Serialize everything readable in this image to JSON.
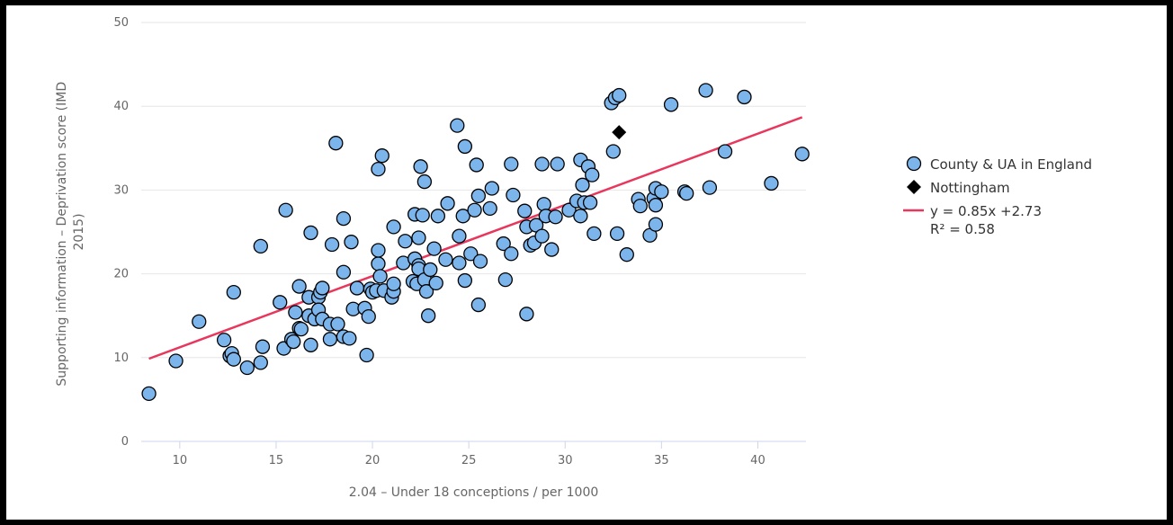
{
  "chart_data": {
    "type": "scatter",
    "title": "",
    "xlabel": "2.04 – Under 18 conceptions / per 1000",
    "ylabel_lines": [
      "Supporting information – Deprivation score (IMD",
      "2015)"
    ],
    "xlim": [
      8,
      42.5
    ],
    "ylim": [
      0,
      50
    ],
    "xticks": [
      10,
      15,
      20,
      25,
      30,
      35,
      40
    ],
    "yticks": [
      0,
      10,
      20,
      30,
      40,
      50
    ],
    "grid": "horizontal",
    "legend_position": "right",
    "colors": {
      "points": "#7cb5ec",
      "point_stroke": "#000000",
      "highlight": "#000000",
      "trendline": "#e8365d",
      "grid": "#e6e6e6",
      "axis": "#ccd6eb"
    },
    "series": [
      {
        "name": "County & UA in England",
        "marker": "circle",
        "points": [
          [
            8.4,
            5.7
          ],
          [
            9.8,
            9.6
          ],
          [
            11.0,
            14.3
          ],
          [
            12.3,
            12.1
          ],
          [
            12.6,
            10.2
          ],
          [
            12.7,
            10.5
          ],
          [
            12.8,
            9.8
          ],
          [
            12.8,
            17.8
          ],
          [
            13.5,
            8.8
          ],
          [
            14.2,
            9.4
          ],
          [
            14.2,
            23.3
          ],
          [
            14.3,
            11.3
          ],
          [
            15.2,
            16.6
          ],
          [
            15.4,
            11.1
          ],
          [
            15.5,
            27.6
          ],
          [
            15.8,
            12.2
          ],
          [
            15.9,
            11.9
          ],
          [
            16.0,
            15.4
          ],
          [
            16.2,
            13.5
          ],
          [
            16.2,
            18.5
          ],
          [
            16.3,
            13.4
          ],
          [
            16.7,
            17.2
          ],
          [
            16.7,
            15.0
          ],
          [
            16.8,
            11.5
          ],
          [
            16.8,
            24.9
          ],
          [
            17.0,
            14.6
          ],
          [
            17.2,
            17.2
          ],
          [
            17.2,
            15.7
          ],
          [
            17.3,
            17.8
          ],
          [
            17.4,
            14.6
          ],
          [
            17.4,
            18.3
          ],
          [
            17.8,
            12.2
          ],
          [
            17.8,
            14.0
          ],
          [
            17.9,
            23.5
          ],
          [
            18.1,
            35.6
          ],
          [
            18.2,
            14.0
          ],
          [
            18.5,
            20.2
          ],
          [
            18.5,
            26.6
          ],
          [
            18.5,
            12.5
          ],
          [
            18.8,
            12.3
          ],
          [
            18.9,
            23.8
          ],
          [
            19.0,
            15.8
          ],
          [
            19.2,
            18.3
          ],
          [
            19.6,
            15.9
          ],
          [
            19.7,
            10.3
          ],
          [
            19.8,
            14.9
          ],
          [
            19.9,
            18.2
          ],
          [
            20.0,
            17.8
          ],
          [
            20.2,
            18.0
          ],
          [
            20.3,
            32.5
          ],
          [
            20.3,
            21.2
          ],
          [
            20.3,
            22.8
          ],
          [
            20.4,
            19.7
          ],
          [
            20.5,
            34.1
          ],
          [
            20.6,
            18.0
          ],
          [
            21.0,
            17.2
          ],
          [
            21.1,
            25.6
          ],
          [
            21.1,
            17.9
          ],
          [
            21.1,
            18.8
          ],
          [
            21.6,
            21.3
          ],
          [
            21.7,
            23.9
          ],
          [
            22.1,
            19.1
          ],
          [
            22.2,
            27.1
          ],
          [
            22.2,
            21.8
          ],
          [
            22.3,
            18.8
          ],
          [
            22.4,
            21.0
          ],
          [
            22.4,
            20.6
          ],
          [
            22.4,
            24.3
          ],
          [
            22.5,
            32.8
          ],
          [
            22.6,
            27.0
          ],
          [
            22.7,
            31.0
          ],
          [
            22.7,
            19.3
          ],
          [
            22.8,
            17.9
          ],
          [
            22.9,
            15.0
          ],
          [
            23.0,
            20.5
          ],
          [
            23.2,
            23.0
          ],
          [
            23.3,
            18.9
          ],
          [
            23.4,
            26.9
          ],
          [
            23.8,
            21.7
          ],
          [
            23.9,
            28.4
          ],
          [
            24.4,
            37.7
          ],
          [
            24.5,
            24.5
          ],
          [
            24.5,
            21.3
          ],
          [
            24.7,
            26.9
          ],
          [
            24.8,
            35.2
          ],
          [
            24.8,
            19.2
          ],
          [
            25.1,
            22.4
          ],
          [
            25.3,
            27.6
          ],
          [
            25.4,
            33.0
          ],
          [
            25.5,
            29.3
          ],
          [
            25.5,
            16.3
          ],
          [
            25.6,
            21.5
          ],
          [
            26.1,
            27.8
          ],
          [
            26.2,
            30.2
          ],
          [
            26.8,
            23.6
          ],
          [
            26.9,
            19.3
          ],
          [
            27.2,
            33.1
          ],
          [
            27.2,
            22.4
          ],
          [
            27.3,
            29.4
          ],
          [
            27.9,
            27.5
          ],
          [
            28.0,
            15.2
          ],
          [
            28.0,
            25.6
          ],
          [
            28.2,
            23.4
          ],
          [
            28.4,
            23.7
          ],
          [
            28.5,
            25.8
          ],
          [
            28.8,
            24.5
          ],
          [
            28.8,
            33.1
          ],
          [
            28.9,
            28.3
          ],
          [
            29.0,
            26.9
          ],
          [
            29.3,
            22.9
          ],
          [
            29.5,
            26.8
          ],
          [
            29.6,
            33.1
          ],
          [
            30.2,
            27.6
          ],
          [
            30.6,
            28.7
          ],
          [
            30.8,
            33.6
          ],
          [
            30.8,
            26.9
          ],
          [
            30.9,
            30.6
          ],
          [
            31.0,
            28.5
          ],
          [
            31.2,
            32.8
          ],
          [
            31.3,
            28.5
          ],
          [
            31.4,
            31.8
          ],
          [
            31.5,
            24.8
          ],
          [
            32.4,
            40.4
          ],
          [
            32.5,
            34.6
          ],
          [
            32.6,
            41.0
          ],
          [
            32.7,
            24.8
          ],
          [
            32.8,
            41.3
          ],
          [
            33.2,
            22.3
          ],
          [
            33.8,
            28.9
          ],
          [
            33.9,
            28.1
          ],
          [
            34.4,
            24.6
          ],
          [
            34.6,
            29.0
          ],
          [
            34.7,
            30.2
          ],
          [
            34.7,
            28.2
          ],
          [
            34.7,
            25.9
          ],
          [
            35.0,
            29.8
          ],
          [
            35.5,
            40.2
          ],
          [
            36.2,
            29.8
          ],
          [
            36.3,
            29.6
          ],
          [
            37.3,
            41.9
          ],
          [
            37.5,
            30.3
          ],
          [
            38.3,
            34.6
          ],
          [
            39.3,
            41.1
          ],
          [
            40.7,
            30.8
          ],
          [
            42.3,
            34.3
          ]
        ]
      },
      {
        "name": "Nottingham",
        "marker": "diamond",
        "points": [
          [
            32.8,
            36.9
          ]
        ]
      }
    ],
    "trendline": {
      "legend_line1": "y = 0.85x +2.73",
      "legend_line2": "R² = 0.58",
      "slope": 0.85,
      "intercept": 2.73,
      "x_range": [
        8.4,
        42.3
      ]
    }
  }
}
